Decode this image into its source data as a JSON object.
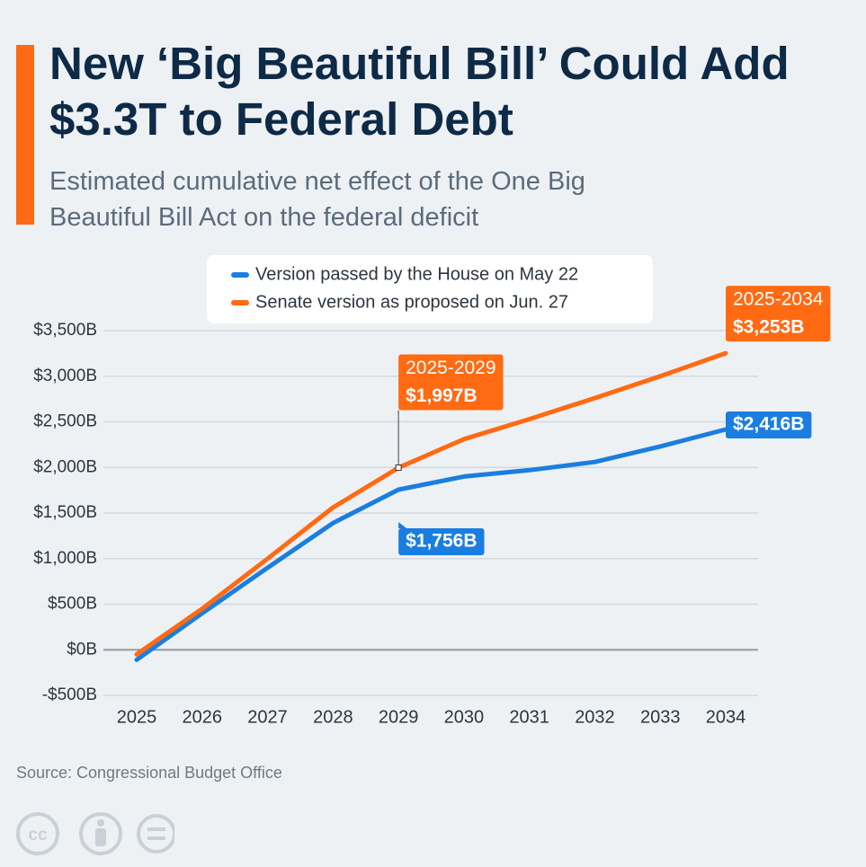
{
  "chart_data": {
    "type": "line",
    "title": "New ‘Big Beautiful Bill’ Could Add $3.3T to Federal Debt",
    "subtitle": "Estimated cumulative net effect of the One Big Beautiful Bill Act on the federal deficit",
    "source": "Source: Congressional Budget Office",
    "categories": [
      "2025",
      "2026",
      "2027",
      "2028",
      "2029",
      "2030",
      "2031",
      "2032",
      "2033",
      "2034"
    ],
    "series": [
      {
        "name": "Version passed by the House on May 22",
        "color": "#1a7ee0",
        "values": [
          -110,
          400,
          900,
          1390,
          1756,
          1900,
          1970,
          2060,
          2230,
          2416
        ],
        "value_labels": [
          null,
          null,
          null,
          null,
          "$1,756B",
          null,
          null,
          null,
          null,
          "$2,416B"
        ]
      },
      {
        "name": "Senate version as proposed on Jun. 27",
        "color": "#ff6a13",
        "values": [
          -50,
          450,
          1000,
          1560,
          1997,
          2310,
          2530,
          2760,
          3000,
          3253
        ],
        "value_labels": [
          null,
          null,
          null,
          null,
          "$1,997B",
          null,
          null,
          null,
          null,
          "$3,253B"
        ]
      }
    ],
    "annotations": [
      {
        "text": "2025-2029",
        "category": "2029"
      },
      {
        "text": "2025-2034",
        "category": "2034"
      }
    ],
    "ylim": [
      -500,
      3500
    ],
    "yticks": [
      {
        "value": -500,
        "label": "-$500B"
      },
      {
        "value": 0,
        "label": "$0B"
      },
      {
        "value": 500,
        "label": "$500B"
      },
      {
        "value": 1000,
        "label": "$1,000B"
      },
      {
        "value": 1500,
        "label": "$1,500B"
      },
      {
        "value": 2000,
        "label": "$2,000B"
      },
      {
        "value": 2500,
        "label": "$2,500B"
      },
      {
        "value": 3000,
        "label": "$3,000B"
      },
      {
        "value": 3500,
        "label": "$3,500B"
      }
    ],
    "grid": true,
    "legend": "top"
  }
}
